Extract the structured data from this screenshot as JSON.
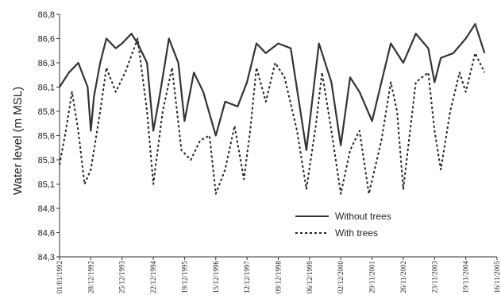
{
  "chart_data": {
    "type": "line",
    "ylabel": "Water level (m MSL)",
    "ylim": [
      84.3,
      86.8
    ],
    "y_ticks": [
      "84,3",
      "84,6",
      "84,8",
      "85,1",
      "85,3",
      "85,6",
      "85,8",
      "86,1",
      "86,3",
      "86,6",
      "86,8"
    ],
    "x_ticks": [
      "01/01/1992",
      "28/12/1992",
      "25/12/1993",
      "22/12/1994",
      "19/12/1995",
      "15/12/1996",
      "12/12/1997",
      "09/12/1998",
      "06/12/1999",
      "02/12/2000",
      "29/11/2001",
      "26/11/2002",
      "23/11/2003",
      "19/11/2004",
      "16/11/2005"
    ],
    "grid": false,
    "legend_position": "bottom-right",
    "series": [
      {
        "name": "Without trees",
        "color": "#333333",
        "style": "solid",
        "points": [
          [
            0,
            86.05
          ],
          [
            0.3,
            86.2
          ],
          [
            0.6,
            86.3
          ],
          [
            0.9,
            86.05
          ],
          [
            1.0,
            85.6
          ],
          [
            1.1,
            85.95
          ],
          [
            1.3,
            86.3
          ],
          [
            1.5,
            86.55
          ],
          [
            1.8,
            86.45
          ],
          [
            2.0,
            86.5
          ],
          [
            2.3,
            86.6
          ],
          [
            2.5,
            86.5
          ],
          [
            2.8,
            86.3
          ],
          [
            3.0,
            85.6
          ],
          [
            3.2,
            85.95
          ],
          [
            3.5,
            86.55
          ],
          [
            3.8,
            86.3
          ],
          [
            4.0,
            85.7
          ],
          [
            4.3,
            86.2
          ],
          [
            4.6,
            86.0
          ],
          [
            5.0,
            85.55
          ],
          [
            5.3,
            85.9
          ],
          [
            5.7,
            85.85
          ],
          [
            6.0,
            86.1
          ],
          [
            6.3,
            86.5
          ],
          [
            6.6,
            86.4
          ],
          [
            7.0,
            86.5
          ],
          [
            7.4,
            86.45
          ],
          [
            7.9,
            85.4
          ],
          [
            8.3,
            86.5
          ],
          [
            8.7,
            86.1
          ],
          [
            9.0,
            85.45
          ],
          [
            9.3,
            86.15
          ],
          [
            9.6,
            86.0
          ],
          [
            10.0,
            85.7
          ],
          [
            10.3,
            86.1
          ],
          [
            10.6,
            86.5
          ],
          [
            11.0,
            86.3
          ],
          [
            11.4,
            86.6
          ],
          [
            11.8,
            86.45
          ],
          [
            12.0,
            86.1
          ],
          [
            12.2,
            86.35
          ],
          [
            12.6,
            86.4
          ],
          [
            13.0,
            86.55
          ],
          [
            13.3,
            86.7
          ],
          [
            13.6,
            86.4
          ]
        ]
      },
      {
        "name": "With trees",
        "color": "#222222",
        "style": "dashed",
        "points": [
          [
            0,
            85.25
          ],
          [
            0.2,
            85.6
          ],
          [
            0.4,
            86.0
          ],
          [
            0.6,
            85.6
          ],
          [
            0.8,
            85.05
          ],
          [
            1.0,
            85.2
          ],
          [
            1.3,
            85.8
          ],
          [
            1.5,
            86.25
          ],
          [
            1.8,
            86.0
          ],
          [
            2.1,
            86.2
          ],
          [
            2.5,
            86.55
          ],
          [
            2.8,
            85.8
          ],
          [
            3.0,
            85.05
          ],
          [
            3.3,
            85.8
          ],
          [
            3.6,
            86.25
          ],
          [
            3.9,
            85.4
          ],
          [
            4.2,
            85.3
          ],
          [
            4.5,
            85.5
          ],
          [
            4.8,
            85.55
          ],
          [
            5.0,
            84.95
          ],
          [
            5.3,
            85.2
          ],
          [
            5.6,
            85.65
          ],
          [
            5.9,
            85.1
          ],
          [
            6.1,
            85.6
          ],
          [
            6.3,
            86.25
          ],
          [
            6.6,
            85.9
          ],
          [
            6.9,
            86.3
          ],
          [
            7.2,
            86.15
          ],
          [
            7.6,
            85.6
          ],
          [
            7.9,
            85.0
          ],
          [
            8.2,
            85.65
          ],
          [
            8.4,
            86.2
          ],
          [
            8.7,
            85.6
          ],
          [
            9.0,
            84.95
          ],
          [
            9.3,
            85.4
          ],
          [
            9.6,
            85.6
          ],
          [
            9.9,
            84.95
          ],
          [
            10.3,
            85.5
          ],
          [
            10.6,
            86.1
          ],
          [
            10.8,
            85.8
          ],
          [
            11.0,
            85.0
          ],
          [
            11.4,
            86.1
          ],
          [
            11.8,
            86.2
          ],
          [
            12.0,
            85.6
          ],
          [
            12.2,
            85.2
          ],
          [
            12.5,
            85.8
          ],
          [
            12.8,
            86.2
          ],
          [
            13.0,
            86.0
          ],
          [
            13.3,
            86.4
          ],
          [
            13.6,
            86.2
          ]
        ]
      }
    ]
  }
}
